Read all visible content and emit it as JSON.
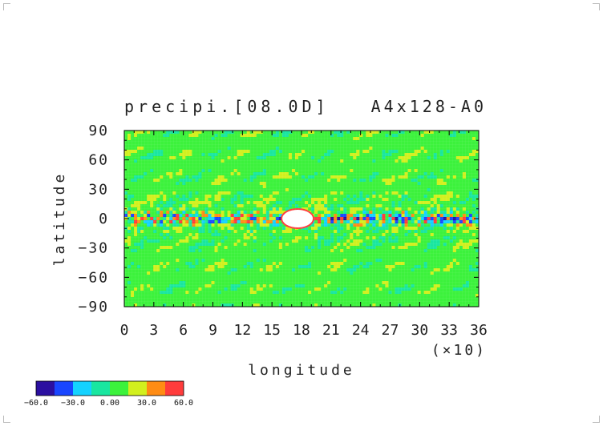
{
  "chart_data": {
    "type": "heatmap",
    "title": "precipi.[08.0D]",
    "subtitle": "A4x128-A0",
    "xlabel": "longitude",
    "ylabel": "latitude",
    "x_scale_note": "(×10)",
    "x_range": [
      0,
      36
    ],
    "y_range": [
      -90,
      90
    ],
    "x_ticks": [
      "0",
      "3",
      "6",
      "9",
      "12",
      "15",
      "18",
      "21",
      "24",
      "27",
      "30",
      "33",
      "36"
    ],
    "y_ticks": [
      "90",
      "60",
      "30",
      "0",
      "−30",
      "−60",
      "−90"
    ],
    "colorbar": {
      "labels": [
        "−60.0",
        "−30.0",
        "0.00",
        "30.0",
        "60.0"
      ],
      "colors": [
        "#2b0fa0",
        "#1946ff",
        "#14d2ff",
        "#19e6a0",
        "#3cf23c",
        "#d2f01e",
        "#ff8c14",
        "#ff3c3c"
      ]
    },
    "field_features": {
      "background_level": "0 to 30",
      "equatorial_band_levels": "−60 to 60",
      "max_cell_center": [
        17.6,
        0
      ],
      "max_cell_level": ">60"
    }
  }
}
